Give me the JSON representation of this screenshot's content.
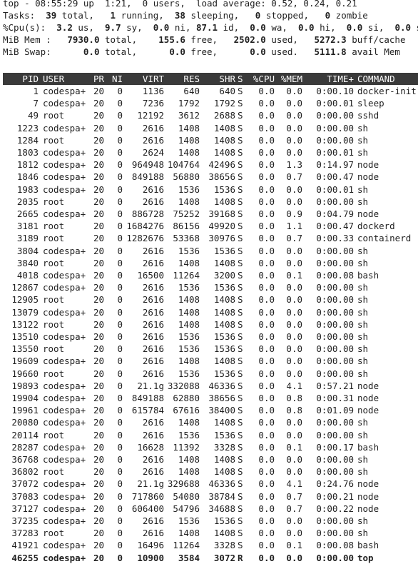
{
  "summary": {
    "top_line": "top - 08:55:29 up  1:21,  0 users,  load average: 0.52, 0.24, 0.21",
    "tasks": {
      "label": "Tasks:",
      "total": "39",
      "running": "1",
      "sleeping": "38",
      "stopped": "0",
      "zombie": "0"
    },
    "cpu": {
      "label": "%Cpu(s):",
      "us": "3.2",
      "sy": "9.7",
      "ni": "0.0",
      "id": "87.1",
      "wa": "0.0",
      "hi": "0.0",
      "si": "0.0",
      "st": "0.0"
    },
    "mem": {
      "label": "MiB Mem :",
      "total": "7930.0",
      "free": "155.6",
      "used": "2502.0",
      "buff_cache": "5272.3"
    },
    "swap": {
      "label": "MiB Swap:",
      "total": "0.0",
      "free": "0.0",
      "used": "0.0",
      "avail_mem": "5111.8"
    }
  },
  "columns": {
    "pid": "PID",
    "user": "USER",
    "pr": "PR",
    "ni": "NI",
    "virt": "VIRT",
    "res": "RES",
    "shr": "SHR",
    "s": "S",
    "cpu": "%CPU",
    "mem": "%MEM",
    "time": "TIME+",
    "command": "COMMAND"
  },
  "processes": [
    {
      "pid": "1",
      "user": "codespa+",
      "pr": "20",
      "ni": "0",
      "virt": "1136",
      "res": "640",
      "shr": "640",
      "s": "S",
      "cpu": "0.0",
      "mem": "0.0",
      "time": "0:00.10",
      "command": "docker-init"
    },
    {
      "pid": "7",
      "user": "codespa+",
      "pr": "20",
      "ni": "0",
      "virt": "7236",
      "res": "1792",
      "shr": "1792",
      "s": "S",
      "cpu": "0.0",
      "mem": "0.0",
      "time": "0:00.01",
      "command": "sleep"
    },
    {
      "pid": "49",
      "user": "root",
      "pr": "20",
      "ni": "0",
      "virt": "12192",
      "res": "3612",
      "shr": "2688",
      "s": "S",
      "cpu": "0.0",
      "mem": "0.0",
      "time": "0:00.00",
      "command": "sshd"
    },
    {
      "pid": "1223",
      "user": "codespa+",
      "pr": "20",
      "ni": "0",
      "virt": "2616",
      "res": "1408",
      "shr": "1408",
      "s": "S",
      "cpu": "0.0",
      "mem": "0.0",
      "time": "0:00.00",
      "command": "sh"
    },
    {
      "pid": "1284",
      "user": "root",
      "pr": "20",
      "ni": "0",
      "virt": "2616",
      "res": "1408",
      "shr": "1408",
      "s": "S",
      "cpu": "0.0",
      "mem": "0.0",
      "time": "0:00.00",
      "command": "sh"
    },
    {
      "pid": "1803",
      "user": "codespa+",
      "pr": "20",
      "ni": "0",
      "virt": "2624",
      "res": "1408",
      "shr": "1408",
      "s": "S",
      "cpu": "0.0",
      "mem": "0.0",
      "time": "0:00.01",
      "command": "sh"
    },
    {
      "pid": "1812",
      "user": "codespa+",
      "pr": "20",
      "ni": "0",
      "virt": "964948",
      "res": "104764",
      "shr": "42496",
      "s": "S",
      "cpu": "0.0",
      "mem": "1.3",
      "time": "0:14.97",
      "command": "node"
    },
    {
      "pid": "1846",
      "user": "codespa+",
      "pr": "20",
      "ni": "0",
      "virt": "849188",
      "res": "56880",
      "shr": "38656",
      "s": "S",
      "cpu": "0.0",
      "mem": "0.7",
      "time": "0:00.47",
      "command": "node"
    },
    {
      "pid": "1983",
      "user": "codespa+",
      "pr": "20",
      "ni": "0",
      "virt": "2616",
      "res": "1536",
      "shr": "1536",
      "s": "S",
      "cpu": "0.0",
      "mem": "0.0",
      "time": "0:00.01",
      "command": "sh"
    },
    {
      "pid": "2035",
      "user": "root",
      "pr": "20",
      "ni": "0",
      "virt": "2616",
      "res": "1408",
      "shr": "1408",
      "s": "S",
      "cpu": "0.0",
      "mem": "0.0",
      "time": "0:00.00",
      "command": "sh"
    },
    {
      "pid": "2665",
      "user": "codespa+",
      "pr": "20",
      "ni": "0",
      "virt": "886728",
      "res": "75252",
      "shr": "39168",
      "s": "S",
      "cpu": "0.0",
      "mem": "0.9",
      "time": "0:04.79",
      "command": "node"
    },
    {
      "pid": "3181",
      "user": "root",
      "pr": "20",
      "ni": "0",
      "virt": "1684276",
      "res": "86156",
      "shr": "49920",
      "s": "S",
      "cpu": "0.0",
      "mem": "1.1",
      "time": "0:00.47",
      "command": "dockerd"
    },
    {
      "pid": "3189",
      "user": "root",
      "pr": "20",
      "ni": "0",
      "virt": "1282676",
      "res": "53368",
      "shr": "30976",
      "s": "S",
      "cpu": "0.0",
      "mem": "0.7",
      "time": "0:00.33",
      "command": "containerd"
    },
    {
      "pid": "3804",
      "user": "codespa+",
      "pr": "20",
      "ni": "0",
      "virt": "2616",
      "res": "1536",
      "shr": "1536",
      "s": "S",
      "cpu": "0.0",
      "mem": "0.0",
      "time": "0:00.00",
      "command": "sh"
    },
    {
      "pid": "3840",
      "user": "root",
      "pr": "20",
      "ni": "0",
      "virt": "2616",
      "res": "1408",
      "shr": "1408",
      "s": "S",
      "cpu": "0.0",
      "mem": "0.0",
      "time": "0:00.00",
      "command": "sh"
    },
    {
      "pid": "4018",
      "user": "codespa+",
      "pr": "20",
      "ni": "0",
      "virt": "16500",
      "res": "11264",
      "shr": "3200",
      "s": "S",
      "cpu": "0.0",
      "mem": "0.1",
      "time": "0:00.08",
      "command": "bash"
    },
    {
      "pid": "12867",
      "user": "codespa+",
      "pr": "20",
      "ni": "0",
      "virt": "2616",
      "res": "1536",
      "shr": "1536",
      "s": "S",
      "cpu": "0.0",
      "mem": "0.0",
      "time": "0:00.00",
      "command": "sh"
    },
    {
      "pid": "12905",
      "user": "root",
      "pr": "20",
      "ni": "0",
      "virt": "2616",
      "res": "1408",
      "shr": "1408",
      "s": "S",
      "cpu": "0.0",
      "mem": "0.0",
      "time": "0:00.00",
      "command": "sh"
    },
    {
      "pid": "13079",
      "user": "codespa+",
      "pr": "20",
      "ni": "0",
      "virt": "2616",
      "res": "1408",
      "shr": "1408",
      "s": "S",
      "cpu": "0.0",
      "mem": "0.0",
      "time": "0:00.00",
      "command": "sh"
    },
    {
      "pid": "13122",
      "user": "root",
      "pr": "20",
      "ni": "0",
      "virt": "2616",
      "res": "1408",
      "shr": "1408",
      "s": "S",
      "cpu": "0.0",
      "mem": "0.0",
      "time": "0:00.00",
      "command": "sh"
    },
    {
      "pid": "13510",
      "user": "codespa+",
      "pr": "20",
      "ni": "0",
      "virt": "2616",
      "res": "1536",
      "shr": "1536",
      "s": "S",
      "cpu": "0.0",
      "mem": "0.0",
      "time": "0:00.00",
      "command": "sh"
    },
    {
      "pid": "13550",
      "user": "root",
      "pr": "20",
      "ni": "0",
      "virt": "2616",
      "res": "1536",
      "shr": "1536",
      "s": "S",
      "cpu": "0.0",
      "mem": "0.0",
      "time": "0:00.00",
      "command": "sh"
    },
    {
      "pid": "19609",
      "user": "codespa+",
      "pr": "20",
      "ni": "0",
      "virt": "2616",
      "res": "1408",
      "shr": "1408",
      "s": "S",
      "cpu": "0.0",
      "mem": "0.0",
      "time": "0:00.00",
      "command": "sh"
    },
    {
      "pid": "19660",
      "user": "root",
      "pr": "20",
      "ni": "0",
      "virt": "2616",
      "res": "1536",
      "shr": "1536",
      "s": "S",
      "cpu": "0.0",
      "mem": "0.0",
      "time": "0:00.00",
      "command": "sh"
    },
    {
      "pid": "19893",
      "user": "codespa+",
      "pr": "20",
      "ni": "0",
      "virt": "21.1g",
      "res": "332088",
      "shr": "46336",
      "s": "S",
      "cpu": "0.0",
      "mem": "4.1",
      "time": "0:57.21",
      "command": "node"
    },
    {
      "pid": "19904",
      "user": "codespa+",
      "pr": "20",
      "ni": "0",
      "virt": "849188",
      "res": "62880",
      "shr": "38656",
      "s": "S",
      "cpu": "0.0",
      "mem": "0.8",
      "time": "0:00.31",
      "command": "node"
    },
    {
      "pid": "19961",
      "user": "codespa+",
      "pr": "20",
      "ni": "0",
      "virt": "615784",
      "res": "67616",
      "shr": "38400",
      "s": "S",
      "cpu": "0.0",
      "mem": "0.8",
      "time": "0:01.09",
      "command": "node"
    },
    {
      "pid": "20080",
      "user": "codespa+",
      "pr": "20",
      "ni": "0",
      "virt": "2616",
      "res": "1408",
      "shr": "1408",
      "s": "S",
      "cpu": "0.0",
      "mem": "0.0",
      "time": "0:00.00",
      "command": "sh"
    },
    {
      "pid": "20114",
      "user": "root",
      "pr": "20",
      "ni": "0",
      "virt": "2616",
      "res": "1536",
      "shr": "1536",
      "s": "S",
      "cpu": "0.0",
      "mem": "0.0",
      "time": "0:00.00",
      "command": "sh"
    },
    {
      "pid": "28287",
      "user": "codespa+",
      "pr": "20",
      "ni": "0",
      "virt": "16628",
      "res": "11392",
      "shr": "3328",
      "s": "S",
      "cpu": "0.0",
      "mem": "0.1",
      "time": "0:00.17",
      "command": "bash"
    },
    {
      "pid": "36768",
      "user": "codespa+",
      "pr": "20",
      "ni": "0",
      "virt": "2616",
      "res": "1408",
      "shr": "1408",
      "s": "S",
      "cpu": "0.0",
      "mem": "0.0",
      "time": "0:00.00",
      "command": "sh"
    },
    {
      "pid": "36802",
      "user": "root",
      "pr": "20",
      "ni": "0",
      "virt": "2616",
      "res": "1408",
      "shr": "1408",
      "s": "S",
      "cpu": "0.0",
      "mem": "0.0",
      "time": "0:00.00",
      "command": "sh"
    },
    {
      "pid": "37072",
      "user": "codespa+",
      "pr": "20",
      "ni": "0",
      "virt": "21.1g",
      "res": "329688",
      "shr": "46336",
      "s": "S",
      "cpu": "0.0",
      "mem": "4.1",
      "time": "0:24.76",
      "command": "node"
    },
    {
      "pid": "37083",
      "user": "codespa+",
      "pr": "20",
      "ni": "0",
      "virt": "717860",
      "res": "54080",
      "shr": "38784",
      "s": "S",
      "cpu": "0.0",
      "mem": "0.7",
      "time": "0:00.21",
      "command": "node"
    },
    {
      "pid": "37127",
      "user": "codespa+",
      "pr": "20",
      "ni": "0",
      "virt": "606400",
      "res": "54796",
      "shr": "34688",
      "s": "S",
      "cpu": "0.0",
      "mem": "0.7",
      "time": "0:00.22",
      "command": "node"
    },
    {
      "pid": "37235",
      "user": "codespa+",
      "pr": "20",
      "ni": "0",
      "virt": "2616",
      "res": "1536",
      "shr": "1536",
      "s": "S",
      "cpu": "0.0",
      "mem": "0.0",
      "time": "0:00.00",
      "command": "sh"
    },
    {
      "pid": "37283",
      "user": "root",
      "pr": "20",
      "ni": "0",
      "virt": "2616",
      "res": "1408",
      "shr": "1408",
      "s": "S",
      "cpu": "0.0",
      "mem": "0.0",
      "time": "0:00.00",
      "command": "sh"
    },
    {
      "pid": "41921",
      "user": "codespa+",
      "pr": "20",
      "ni": "0",
      "virt": "16496",
      "res": "11264",
      "shr": "3328",
      "s": "S",
      "cpu": "0.0",
      "mem": "0.1",
      "time": "0:00.08",
      "command": "bash"
    },
    {
      "pid": "46255",
      "user": "codespa+",
      "pr": "20",
      "ni": "0",
      "virt": "10900",
      "res": "3584",
      "shr": "3072",
      "s": "R",
      "cpu": "0.0",
      "mem": "0.0",
      "time": "0:00.00",
      "command": "top",
      "highlight": true
    }
  ],
  "colors": {
    "background": "#ffffff",
    "text": "#222222",
    "header_bar_bg": "#3a3a3a",
    "header_bar_text": "#ffffff"
  }
}
